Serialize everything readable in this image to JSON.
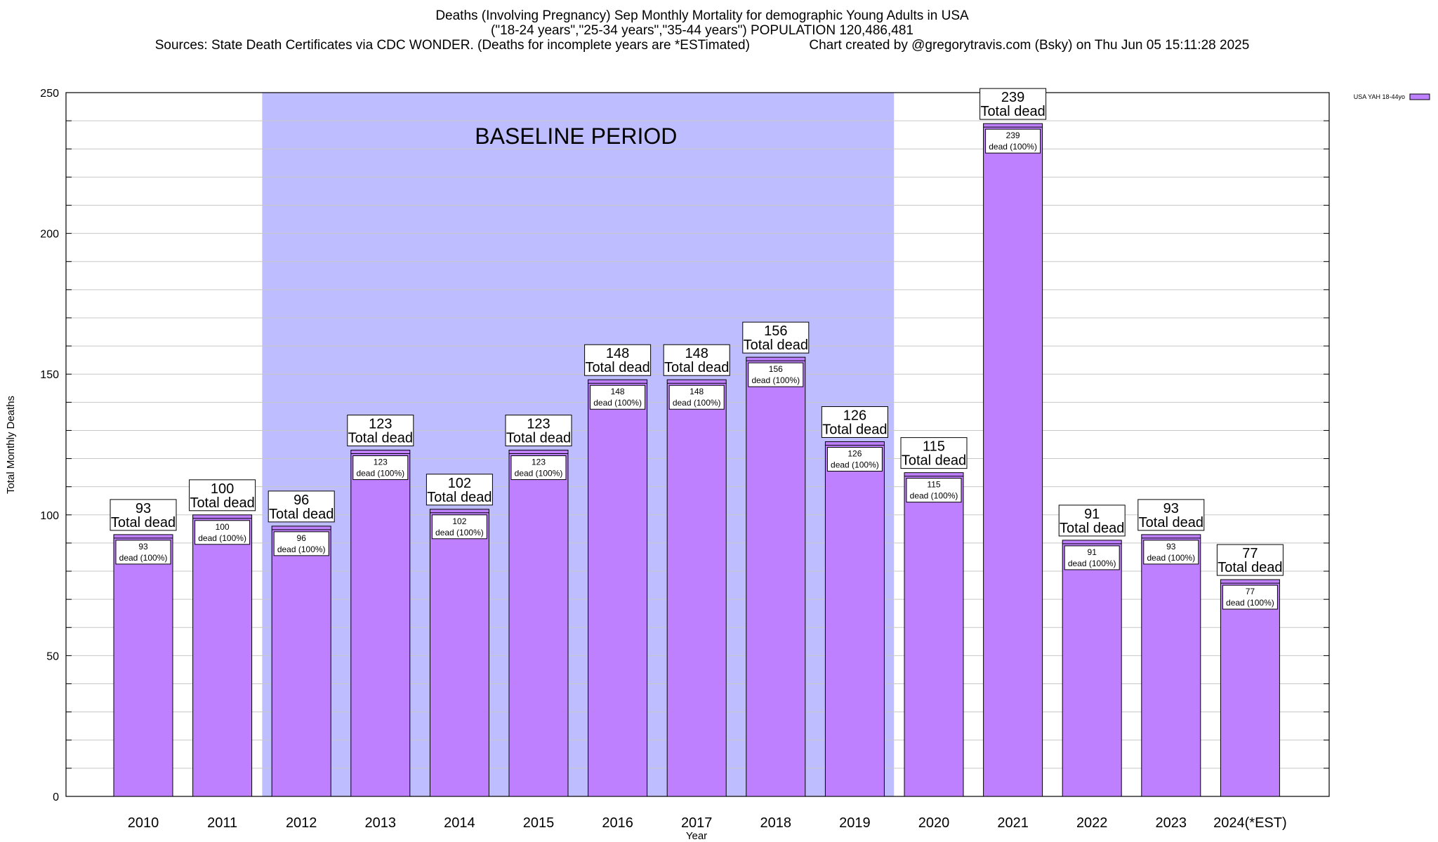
{
  "title_lines": [
    "Deaths (Involving Pregnancy) Sep Monthly Mortality for demographic Young Adults in USA",
    "(\"18-24 years\",\"25-34 years\",\"35-44 years\") POPULATION 120,486,481",
    "Sources: State Death Certificates via CDC WONDER. (Deaths for incomplete years are *ESTimated)                Chart created by @gregorytravis.com (Bsky) on Thu Jun 05 15:11:28 2025"
  ],
  "chart_data": {
    "type": "bar",
    "categories": [
      "2010",
      "2011",
      "2012",
      "2013",
      "2014",
      "2015",
      "2016",
      "2017",
      "2018",
      "2019",
      "2020",
      "2021",
      "2022",
      "2023",
      "2024(*EST)"
    ],
    "series": [
      {
        "name": "USA YAH 18-44yo",
        "values": [
          93,
          100,
          96,
          123,
          102,
          123,
          148,
          148,
          156,
          126,
          115,
          239,
          91,
          93,
          77
        ],
        "color": "#bf80ff"
      }
    ],
    "xlabel": "Year",
    "ylabel": "Total Monthly Deaths",
    "ylim": [
      0,
      250
    ],
    "yticks": [
      0,
      50,
      100,
      150,
      200,
      250
    ],
    "total_label_suffix": "Total dead",
    "inner_label_suffix": "dead (100%)",
    "baseline": {
      "label": "BASELINE PERIOD",
      "start": "2012",
      "end": "2019",
      "color": "#bdbdff"
    },
    "legend": {
      "label": "USA YAH 18-44yo",
      "position": "top-right"
    },
    "grid": true
  }
}
